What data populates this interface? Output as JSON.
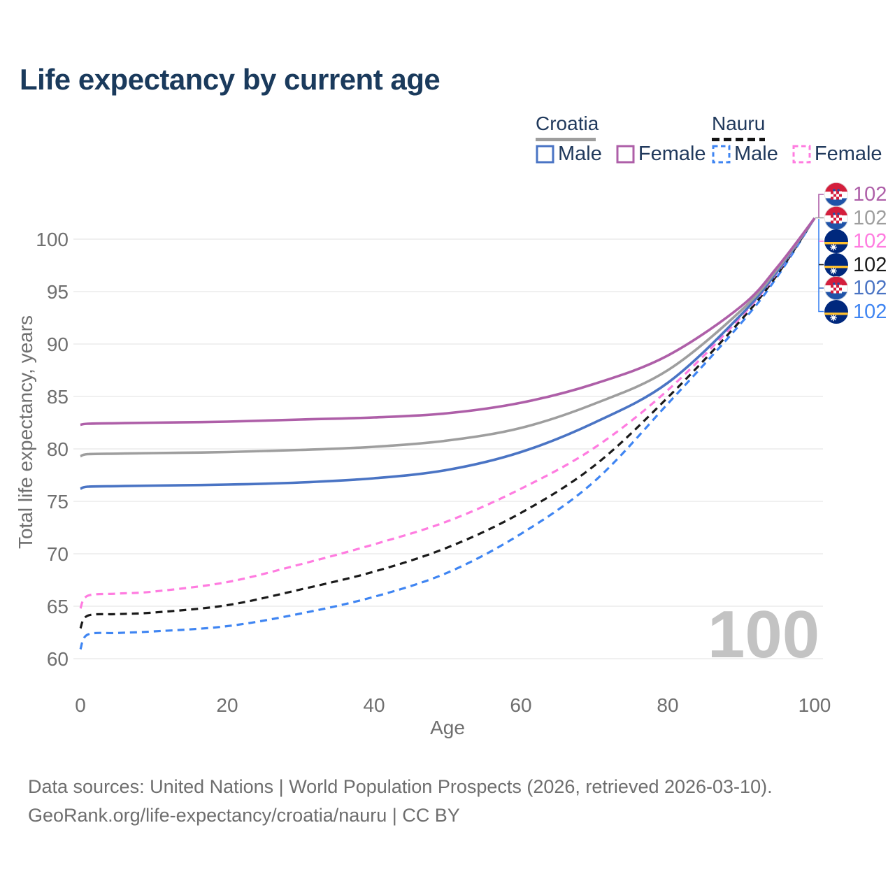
{
  "title": "Life expectancy by current age",
  "legend": {
    "groups": [
      {
        "name": "Croatia",
        "line_style": "solid",
        "line_color": "#9e9e9e",
        "items": [
          {
            "label": "Male",
            "color": "#4a74c4",
            "style": "solid"
          },
          {
            "label": "Female",
            "color": "#ae5fa8",
            "style": "solid"
          }
        ]
      },
      {
        "name": "Nauru",
        "line_style": "dashed",
        "line_color": "#1a1a1a",
        "items": [
          {
            "label": "Male",
            "color": "#3f85f2",
            "style": "dashed"
          },
          {
            "label": "Female",
            "color": "#ff7ce0",
            "style": "dashed"
          }
        ]
      }
    ]
  },
  "chart_data": {
    "type": "line",
    "title": "Life expectancy by current age",
    "xlabel": "Age",
    "ylabel": "Total life expectancy, years",
    "x_ticks": [
      0,
      20,
      40,
      60,
      80,
      100
    ],
    "y_ticks": [
      60,
      65,
      70,
      75,
      80,
      85,
      90,
      95,
      100
    ],
    "xlim": [
      0,
      100
    ],
    "ylim": [
      58.7,
      104
    ],
    "grid": "horizontal-only",
    "x": [
      0,
      1,
      5,
      10,
      20,
      30,
      40,
      50,
      60,
      70,
      80,
      90,
      95,
      100
    ],
    "series": [
      {
        "name": "Nauru Male",
        "country": "Nauru",
        "sex": "Male",
        "color": "#3f85f2",
        "dash": true,
        "values": [
          60.9,
          62.3,
          62.45,
          62.6,
          63.1,
          64.3,
          65.9,
          68.2,
          71.9,
          76.9,
          84.3,
          92.0,
          96.5,
          102
        ]
      },
      {
        "name": "Nauru",
        "country": "Nauru",
        "sex": "Both sexes",
        "color": "#1a1a1a",
        "dash": true,
        "values": [
          62.9,
          64.1,
          64.25,
          64.4,
          65.1,
          66.6,
          68.3,
          70.6,
          73.9,
          78.4,
          84.9,
          92.3,
          96.7,
          102
        ]
      },
      {
        "name": "Nauru Female",
        "country": "Nauru",
        "sex": "Female",
        "color": "#ff7ce0",
        "dash": true,
        "values": [
          64.8,
          66.0,
          66.2,
          66.4,
          67.3,
          69.0,
          70.9,
          73.1,
          76.2,
          80.1,
          85.6,
          92.6,
          96.9,
          102
        ]
      },
      {
        "name": "Croatia Male",
        "country": "Croatia",
        "sex": "Male",
        "color": "#4a74c4",
        "dash": false,
        "values": [
          76.2,
          76.4,
          76.45,
          76.5,
          76.6,
          76.8,
          77.2,
          78.0,
          79.7,
          82.5,
          86.3,
          92.8,
          97.0,
          102
        ]
      },
      {
        "name": "Croatia",
        "country": "Croatia",
        "sex": "Both sexes",
        "color": "#9e9e9e",
        "dash": false,
        "values": [
          79.3,
          79.5,
          79.55,
          79.6,
          79.7,
          79.9,
          80.2,
          80.8,
          82.0,
          84.3,
          87.5,
          93.2,
          97.2,
          102
        ]
      },
      {
        "name": "Croatia Female",
        "country": "Croatia",
        "sex": "Female",
        "color": "#ae5fa8",
        "dash": false,
        "values": [
          82.3,
          82.4,
          82.45,
          82.5,
          82.6,
          82.8,
          83.0,
          83.4,
          84.4,
          86.2,
          88.9,
          93.6,
          97.4,
          102
        ]
      }
    ],
    "end_value": 102
  },
  "end_labels": [
    {
      "series": "Croatia Female",
      "flag": "croatia",
      "value": "102",
      "color": "#ae5fa8"
    },
    {
      "series": "Croatia",
      "flag": "croatia",
      "value": "102",
      "color": "#9e9e9e"
    },
    {
      "series": "Nauru Female",
      "flag": "nauru",
      "value": "102",
      "color": "#ff7ce0"
    },
    {
      "series": "Nauru",
      "flag": "nauru",
      "value": "102",
      "color": "#1a1a1a"
    },
    {
      "series": "Croatia Male",
      "flag": "croatia",
      "value": "102",
      "color": "#4a74c4"
    },
    {
      "series": "Nauru Male",
      "flag": "nauru",
      "value": "102",
      "color": "#3f85f2"
    }
  ],
  "age_counter": "100",
  "footer": {
    "line1": "Data sources: United Nations | World Population Prospects (2026, retrieved 2026-03-10).",
    "line2": "GeoRank.org/life-expectancy/croatia/nauru | CC BY"
  }
}
